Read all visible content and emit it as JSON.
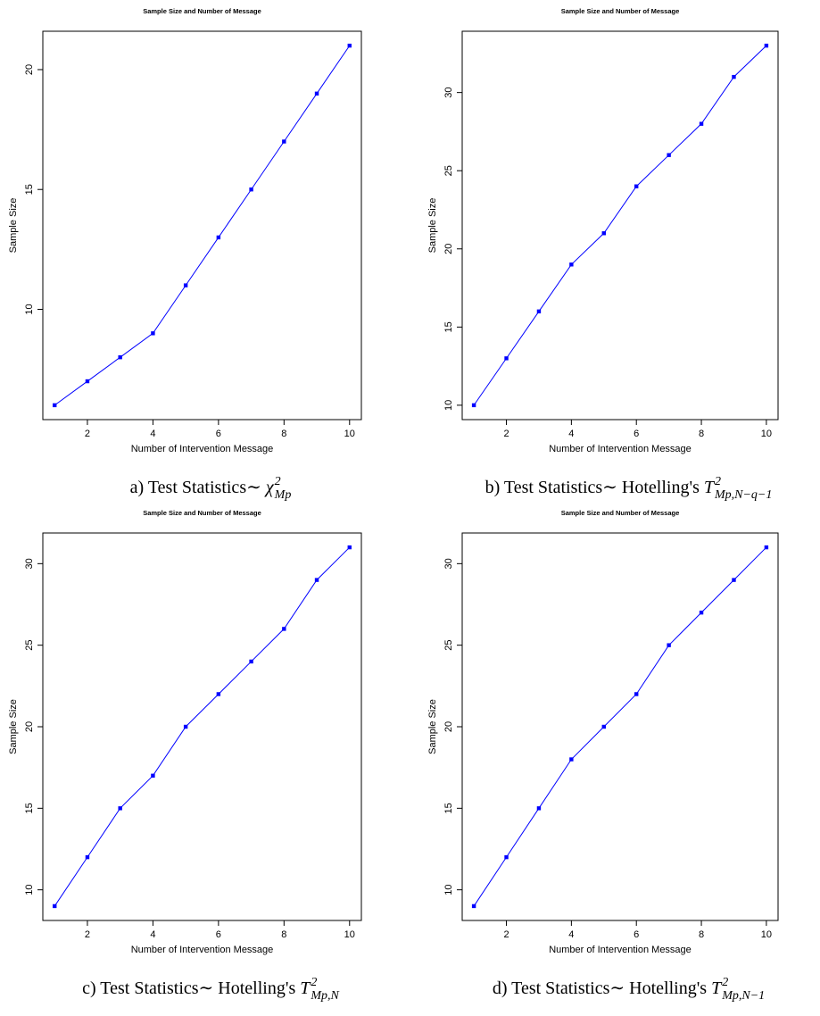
{
  "chart_data": [
    {
      "type": "line",
      "title": "Sample Size and Number of Message",
      "xlabel": "Number of Intervention Message",
      "ylabel": "Sample Size",
      "x": [
        1,
        2,
        3,
        4,
        5,
        6,
        7,
        8,
        9,
        10
      ],
      "values": [
        6,
        7,
        8,
        9,
        11,
        13,
        15,
        17,
        19,
        21
      ],
      "color": "#0000ff",
      "xlim": [
        0.64,
        10.36
      ],
      "xticks": [
        2,
        4,
        6,
        8,
        10
      ],
      "ylim": [
        5.4,
        21.6
      ],
      "yticks": [
        10,
        15,
        20
      ],
      "caption": {
        "prefix": "a) Test Statistics∼ ",
        "symbol": "χ",
        "sup": "2",
        "sub": "Mp"
      }
    },
    {
      "type": "line",
      "title": "Sample Size and Number of Message",
      "xlabel": "Number of Intervention Message",
      "ylabel": "Sample Size",
      "x": [
        1,
        2,
        3,
        4,
        5,
        6,
        7,
        8,
        9,
        10
      ],
      "values": [
        10,
        13,
        16,
        19,
        21,
        24,
        26,
        28,
        31,
        33
      ],
      "color": "#0000ff",
      "xlim": [
        0.64,
        10.36
      ],
      "xticks": [
        2,
        4,
        6,
        8,
        10
      ],
      "ylim": [
        9.08,
        33.92
      ],
      "yticks": [
        10,
        15,
        20,
        25,
        30
      ],
      "caption": {
        "prefix": "b) Test Statistics∼ Hotelling's ",
        "symbol": "T",
        "sup": "2",
        "sub": "Mp,N−q−1"
      }
    },
    {
      "type": "line",
      "title": "Sample Size and Number of Message",
      "xlabel": "Number of Intervention Message",
      "ylabel": "Sample Size",
      "x": [
        1,
        2,
        3,
        4,
        5,
        6,
        7,
        8,
        9,
        10
      ],
      "values": [
        9,
        12,
        15,
        17,
        20,
        22,
        24,
        26,
        29,
        31
      ],
      "color": "#0000ff",
      "xlim": [
        0.64,
        10.36
      ],
      "xticks": [
        2,
        4,
        6,
        8,
        10
      ],
      "ylim": [
        8.12,
        31.88
      ],
      "yticks": [
        10,
        15,
        20,
        25,
        30
      ],
      "caption": {
        "prefix": "c) Test Statistics∼ Hotelling's ",
        "symbol": "T",
        "sup": "2",
        "sub": "Mp,N"
      }
    },
    {
      "type": "line",
      "title": "Sample Size and Number of Message",
      "xlabel": "Number of Intervention Message",
      "ylabel": "Sample Size",
      "x": [
        1,
        2,
        3,
        4,
        5,
        6,
        7,
        8,
        9,
        10
      ],
      "values": [
        9,
        12,
        15,
        18,
        20,
        22,
        25,
        27,
        29,
        31
      ],
      "color": "#0000ff",
      "xlim": [
        0.64,
        10.36
      ],
      "xticks": [
        2,
        4,
        6,
        8,
        10
      ],
      "ylim": [
        8.12,
        31.88
      ],
      "yticks": [
        10,
        15,
        20,
        25,
        30
      ],
      "caption": {
        "prefix": "d) Test Statistics∼ Hotelling's ",
        "symbol": "T",
        "sup": "2",
        "sub": "Mp,N−1"
      }
    }
  ]
}
